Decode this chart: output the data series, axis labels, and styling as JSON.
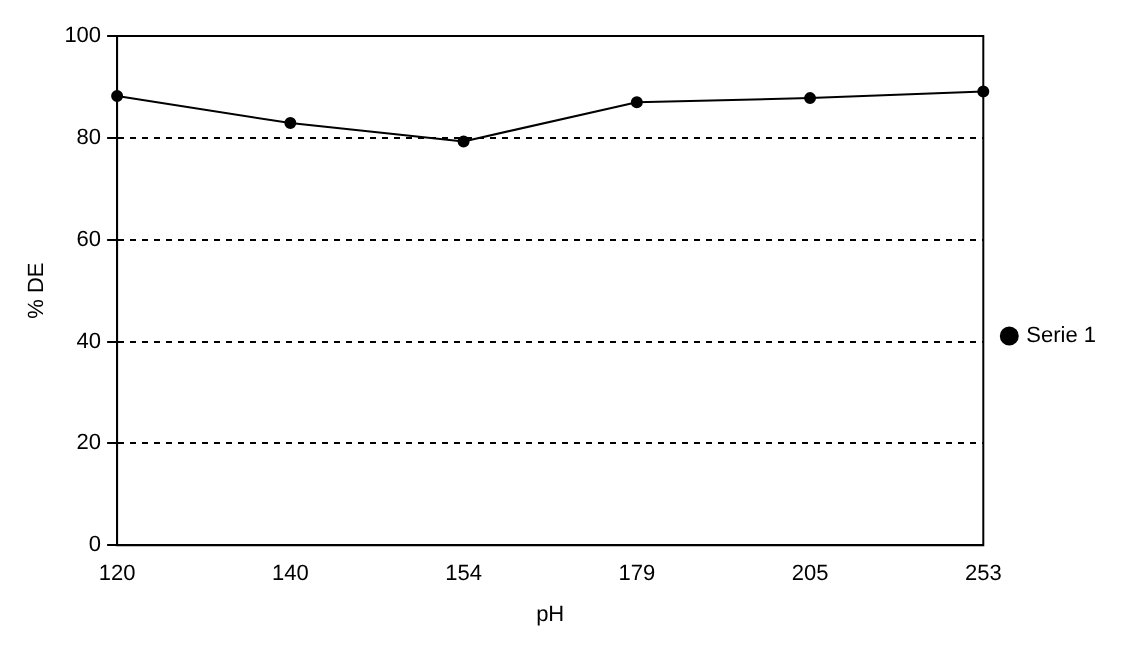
{
  "chart_data": {
    "type": "line",
    "xlabel": "pH",
    "ylabel": "% DE",
    "categories": [
      "120",
      "140",
      "154",
      "179",
      "205",
      "253"
    ],
    "series": [
      {
        "name": "Serie 1",
        "color": "#000000",
        "values": [
          88.2,
          82.9,
          79.3,
          87.0,
          87.8,
          89.1
        ]
      }
    ],
    "ylim": [
      0,
      100
    ],
    "yticks": [
      0,
      20,
      40,
      60,
      80,
      100
    ],
    "grid": "y",
    "legend": "right",
    "marker": "circle",
    "line_style": "solid"
  }
}
